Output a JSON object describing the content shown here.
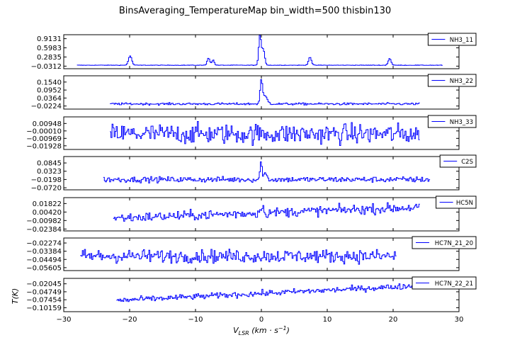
{
  "title": "BinsAveraging_TemperatureMap bin_width=500 thisbin130",
  "xlabel": "V_LSR (km · s^-1)",
  "ylabel": "T(K)",
  "colors": {
    "line": "#0000ff",
    "axes": "#000000",
    "background": "#ffffff"
  },
  "chart_data": [
    {
      "type": "line",
      "series": [
        {
          "name": "NH3_11"
        }
      ],
      "xlim": [
        -30,
        30
      ],
      "ylim": [
        -0.12,
        1.05
      ],
      "yticks": [
        "0.9131",
        "0.5983",
        "0.2835",
        "-0.0312"
      ],
      "ytick_values": [
        0.9131,
        0.5983,
        0.2835,
        -0.0312
      ],
      "vrange": [
        -28,
        27.5
      ],
      "baseline": 0.0,
      "noise": 0.004,
      "peaks": [
        [
          -20,
          0.32,
          0.25
        ],
        [
          -8.1,
          0.25,
          0.2
        ],
        [
          -7.4,
          0.18,
          0.18
        ],
        [
          -0.3,
          1.0,
          0.18
        ],
        [
          0.2,
          0.55,
          0.22
        ],
        [
          7.3,
          0.28,
          0.22
        ],
        [
          19.4,
          0.23,
          0.22
        ]
      ],
      "legend": "top-right",
      "show_xticklabels": false
    },
    {
      "type": "line",
      "series": [
        {
          "name": "NH3_22"
        }
      ],
      "xlim": [
        -30,
        30
      ],
      "ylim": [
        -0.045,
        0.2
      ],
      "yticks": [
        "0.1540",
        "0.0952",
        "0.0364",
        "-0.0224"
      ],
      "ytick_values": [
        0.154,
        0.0952,
        0.0364,
        -0.0224
      ],
      "vrange": [
        -23,
        24
      ],
      "baseline": -0.007,
      "noise": 0.004,
      "peaks": [
        [
          -0.1,
          0.155,
          0.16
        ],
        [
          0.4,
          0.06,
          0.4
        ]
      ],
      "legend": "top-right",
      "show_xticklabels": false
    },
    {
      "type": "line",
      "series": [
        {
          "name": "NH3_33"
        }
      ],
      "xlim": [
        -30,
        30
      ],
      "ylim": [
        -0.024,
        0.018
      ],
      "yticks": [
        "0.00948",
        "-0.00010",
        "-0.00969",
        "-0.01928"
      ],
      "ytick_values": [
        0.00948,
        -0.0001,
        -0.00969,
        -0.01928
      ],
      "vrange": [
        -23,
        24
      ],
      "baseline": -0.004,
      "noise": 0.0065,
      "peaks": [],
      "legend": "top-right",
      "show_xticklabels": false
    },
    {
      "type": "line",
      "series": [
        {
          "name": "C2S"
        }
      ],
      "xlim": [
        -30,
        30
      ],
      "ylim": [
        -0.085,
        0.125
      ],
      "yticks": [
        "0.0845",
        "0.0323",
        "-0.0198",
        "-0.0720"
      ],
      "ytick_values": [
        0.0845,
        0.0323,
        -0.0198,
        -0.072
      ],
      "vrange": [
        -24,
        25.5
      ],
      "baseline": -0.02,
      "noise": 0.009,
      "peaks": [
        [
          -0.15,
          0.1,
          0.14
        ],
        [
          0.4,
          0.04,
          0.3
        ]
      ],
      "legend": "top-right",
      "show_xticklabels": false
    },
    {
      "type": "line",
      "series": [
        {
          "name": "HC5N"
        }
      ],
      "xlim": [
        -30,
        30
      ],
      "ylim": [
        -0.027,
        0.028
      ],
      "yticks": [
        "0.01822",
        "0.00420",
        "-0.00982",
        "-0.02384"
      ],
      "ytick_values": [
        0.01822,
        0.0042,
        -0.00982,
        -0.02384
      ],
      "vrange": [
        -22.5,
        24
      ],
      "baseline": -0.006,
      "trend": [
        -0.006,
        0.012
      ],
      "noise": 0.004,
      "peaks": [
        [
          0,
          0.012,
          0.2
        ]
      ],
      "legend": "top-right",
      "show_xticklabels": false
    },
    {
      "type": "line",
      "series": [
        {
          "name": "HC7N_21_20"
        }
      ],
      "xlim": [
        -30,
        30
      ],
      "ylim": [
        -0.06,
        -0.016
      ],
      "yticks": [
        "-0.02274",
        "-0.03384",
        "-0.04494",
        "-0.05605"
      ],
      "ytick_values": [
        -0.02274,
        -0.03384,
        -0.04494,
        -0.05605
      ],
      "vrange": [
        -27.5,
        20.5
      ],
      "baseline": -0.0405,
      "noise": 0.0045,
      "peaks": [],
      "legend": "top-right",
      "show_xticklabels": false
    },
    {
      "type": "line",
      "series": [
        {
          "name": "HC7N_22_21"
        }
      ],
      "xlim": [
        -30,
        30
      ],
      "ylim": [
        -0.115,
        -0.002
      ],
      "yticks": [
        "-0.02045",
        "-0.04749",
        "-0.07454",
        "-0.10159"
      ],
      "ytick_values": [
        -0.02045,
        -0.04749,
        -0.07454,
        -0.10159
      ],
      "vrange": [
        -22,
        23
      ],
      "baseline": -0.075,
      "trend": [
        -0.077,
        -0.028
      ],
      "noise": 0.005,
      "peaks": [],
      "legend": "top-right",
      "show_xticklabels": true,
      "xticks": [
        "−30",
        "−20",
        "−10",
        "0",
        "10",
        "20",
        "30"
      ],
      "xtick_values": [
        -30,
        -20,
        -10,
        0,
        10,
        20,
        30
      ]
    }
  ]
}
